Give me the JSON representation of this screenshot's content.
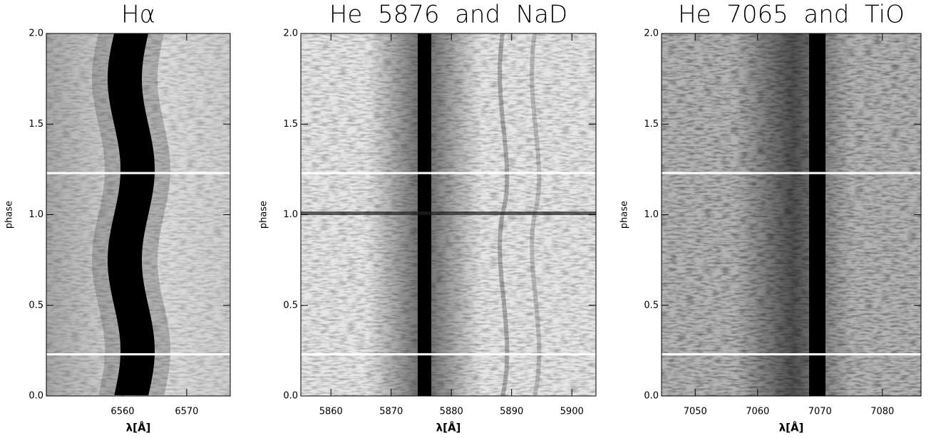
{
  "chart_data": [
    {
      "type": "image",
      "title": "Hα",
      "xlabel": "λ[Å]",
      "ylabel": "phase",
      "xlim": [
        6548.1,
        6576.8
      ],
      "xticks": [
        6560,
        6570
      ],
      "ylim": [
        0,
        2
      ],
      "yticks": [
        {
          "value": 0,
          "label": "0.0"
        },
        {
          "value": 0.5,
          "label": "0.5"
        },
        {
          "value": 1,
          "label": "1.0"
        },
        {
          "value": 1.5,
          "label": "1.5"
        },
        {
          "value": 2,
          "label": "2.0"
        }
      ],
      "hlines": [
        0.23,
        1.23
      ]
    },
    {
      "type": "image",
      "title": "He  5876  and  NaD",
      "xlabel": "λ[Å]",
      "ylabel": "phase",
      "xlim": [
        5855.0,
        5904.0
      ],
      "xticks": [
        5860,
        5870,
        5880,
        5890,
        5900
      ],
      "ylim": [
        0,
        2
      ],
      "yticks": [
        {
          "value": 0,
          "label": "0.0"
        },
        {
          "value": 0.5,
          "label": "0.5"
        },
        {
          "value": 1,
          "label": "1.0"
        },
        {
          "value": 1.5,
          "label": "1.5"
        },
        {
          "value": 2,
          "label": "2.0"
        }
      ],
      "hlines": [
        0.23,
        1.23
      ]
    },
    {
      "type": "image",
      "title": "He  7065  and  TiO",
      "xlabel": "λ[Å]",
      "ylabel": "phase",
      "xlim": [
        7044.6,
        7086.2
      ],
      "xticks": [
        7050,
        7060,
        7070,
        7080
      ],
      "ylim": [
        0,
        2
      ],
      "yticks": [
        {
          "value": 0,
          "label": "0.0"
        },
        {
          "value": 0.5,
          "label": "0.5"
        },
        {
          "value": 1,
          "label": "1.0"
        },
        {
          "value": 1.5,
          "label": "1.5"
        },
        {
          "value": 2,
          "label": "2.0"
        }
      ],
      "hlines": [
        0.23,
        1.23
      ]
    }
  ]
}
